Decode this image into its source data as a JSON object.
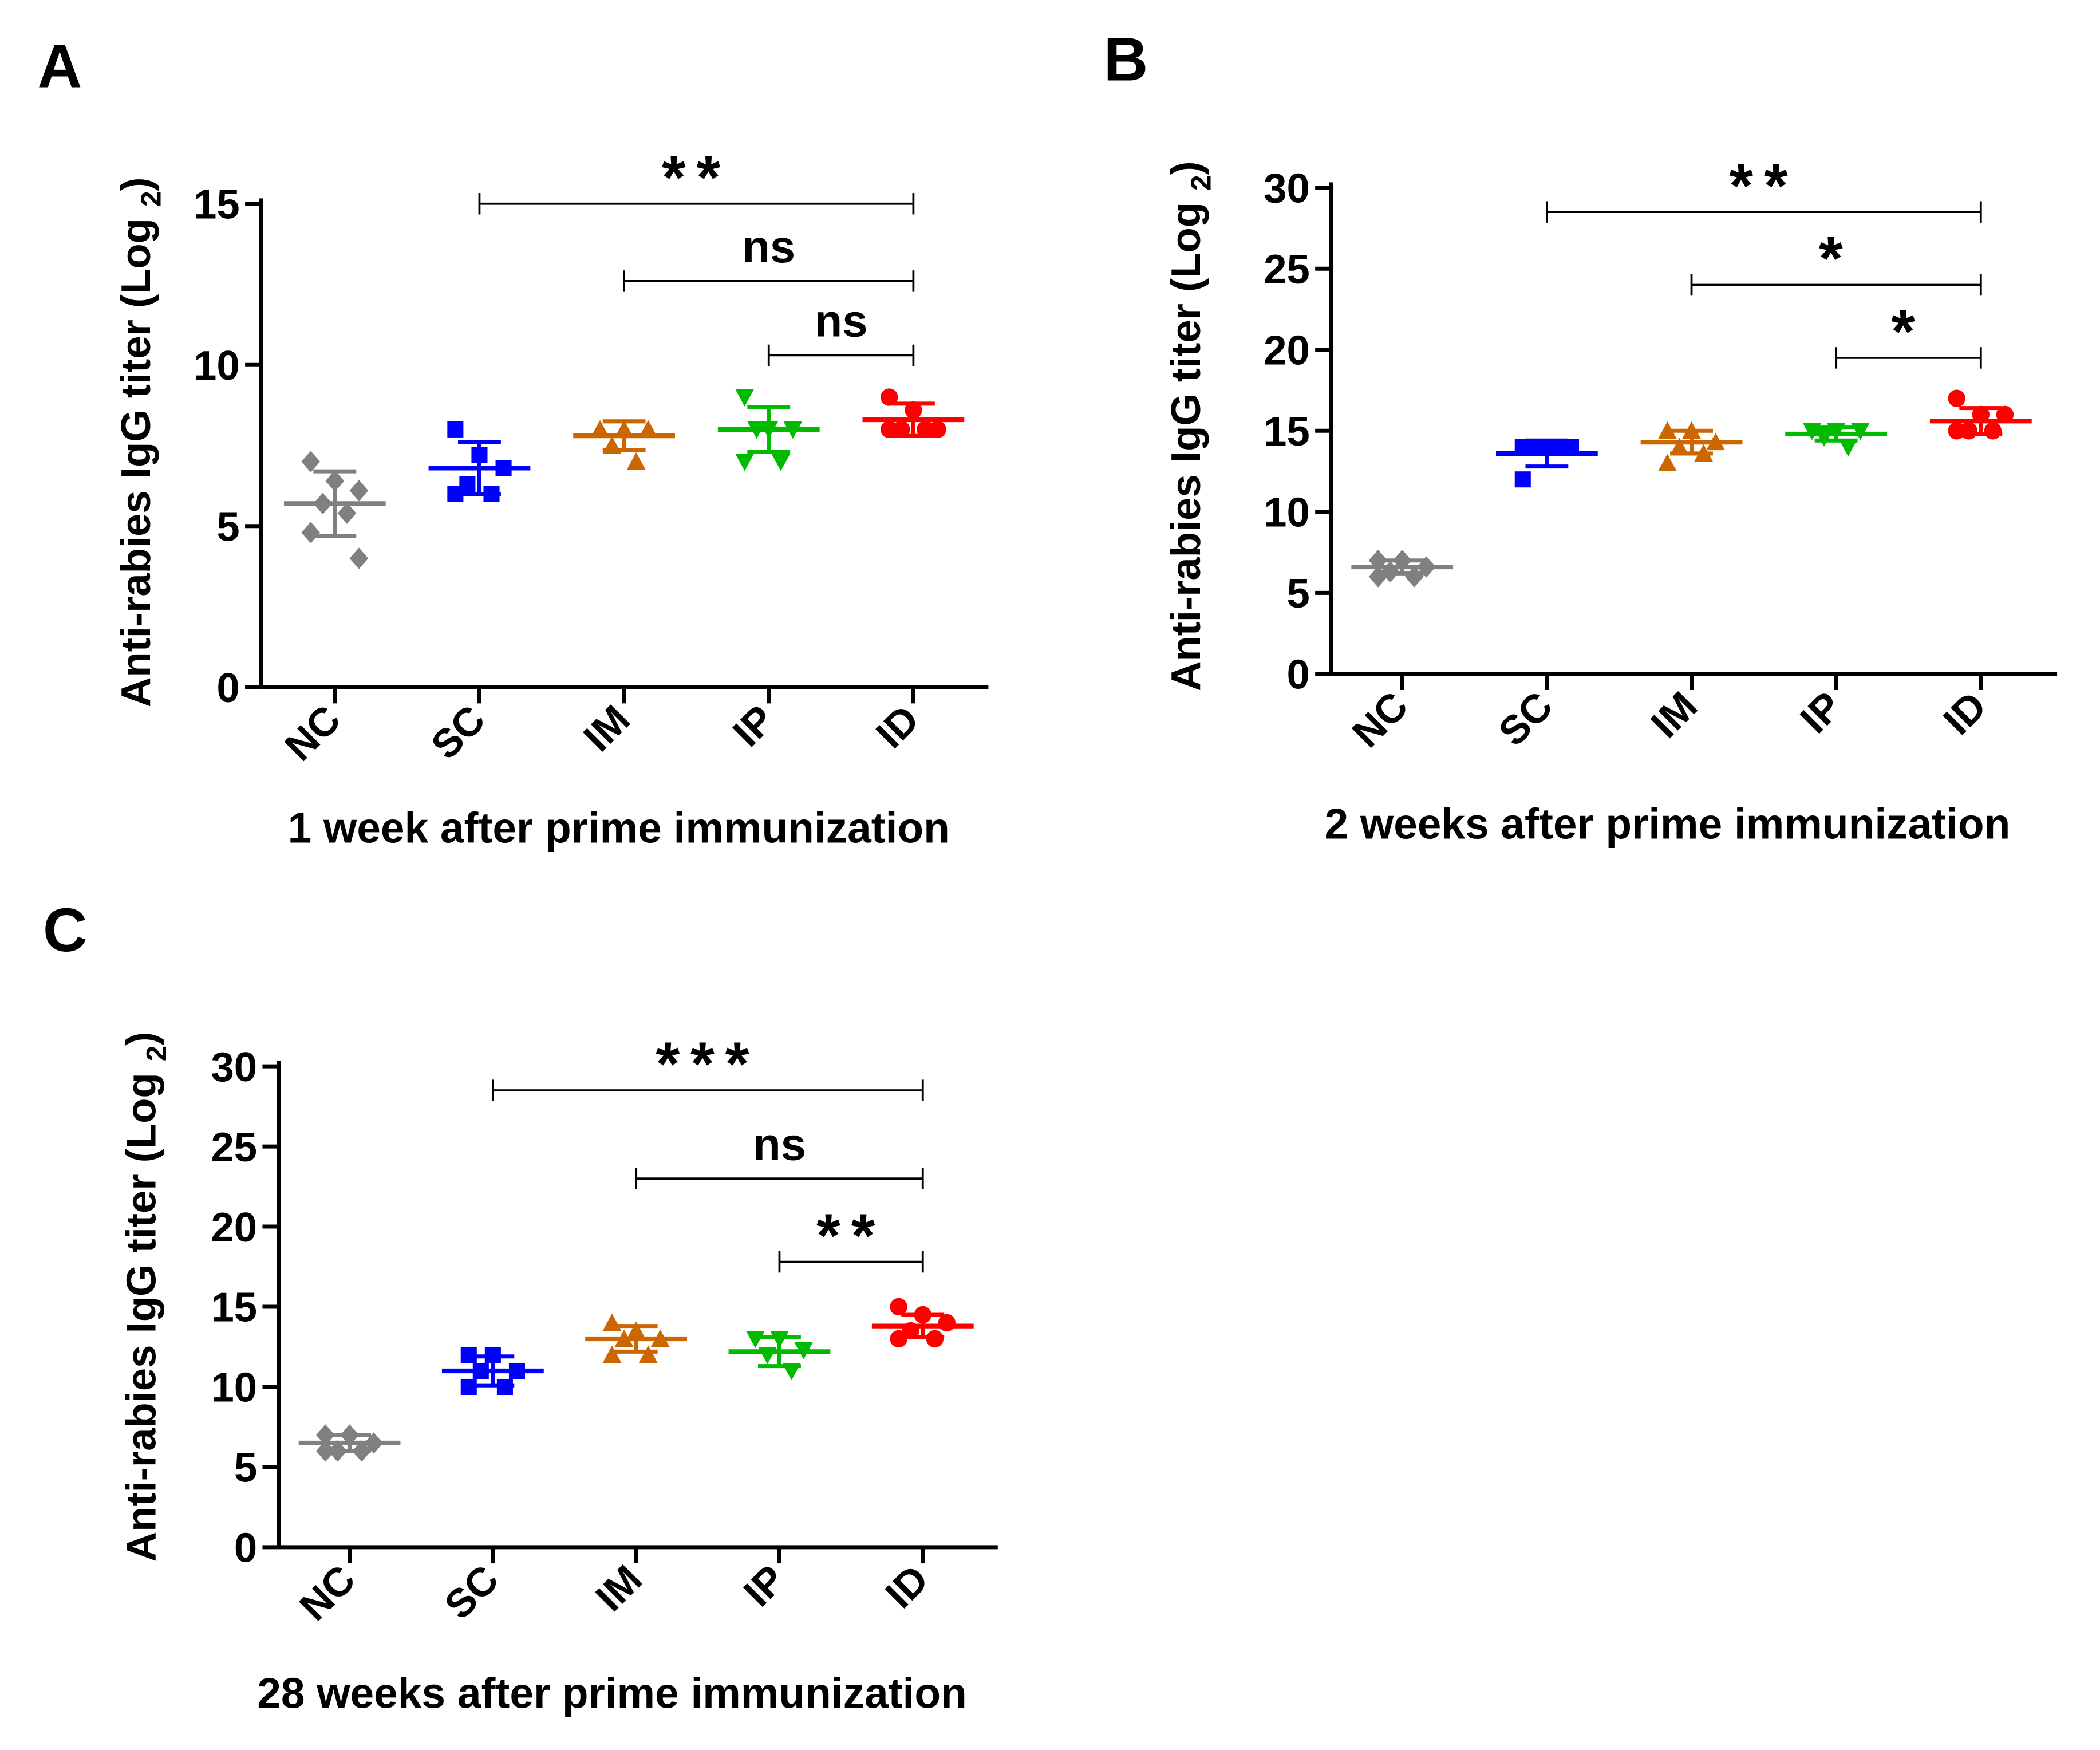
{
  "chart_data": [
    {
      "type": "scatter",
      "panel_label": "A",
      "title": "",
      "xlabel": "1 week after prime immunization",
      "ylabel": "Anti-rabies IgG titer (Log",
      "ylabel_sub": "2",
      "ylabel_close": ")",
      "ylim": [
        0,
        15
      ],
      "yticks": [
        "0",
        "5",
        "10",
        "15"
      ],
      "categories": [
        "NC",
        "SC",
        "IM",
        "IP",
        "ID"
      ],
      "series": [
        {
          "name": "NC",
          "color": "#808080",
          "marker": "diamond",
          "points": [
            7.0,
            6.4,
            6.1,
            5.7,
            5.4,
            4.8,
            4.0
          ],
          "mean": 5.7,
          "sd": 1.0
        },
        {
          "name": "SC",
          "color": "#0000ff",
          "marker": "square",
          "points": [
            8.0,
            7.2,
            6.8,
            6.3,
            6.0,
            6.0
          ],
          "mean": 6.8,
          "sd": 0.8
        },
        {
          "name": "IM",
          "color": "#cc6600",
          "marker": "triangle-up",
          "points": [
            8.0,
            8.0,
            8.0,
            7.5,
            7.0
          ],
          "mean": 7.8,
          "sd": 0.45
        },
        {
          "name": "IP",
          "color": "#00bb00",
          "marker": "triangle-down",
          "points": [
            9.0,
            8.0,
            8.0,
            8.0,
            7.0,
            7.0
          ],
          "mean": 8.0,
          "sd": 0.7
        },
        {
          "name": "ID",
          "color": "#ff0000",
          "marker": "circle",
          "points": [
            9.0,
            8.6,
            8.0,
            8.0,
            8.0,
            8.0
          ],
          "mean": 8.3,
          "sd": 0.5
        }
      ],
      "comparisons": [
        {
          "from": "SC",
          "to": "ID",
          "y": 15.0,
          "label": "**"
        },
        {
          "from": "IM",
          "to": "ID",
          "y": 12.6,
          "label": "ns"
        },
        {
          "from": "IP",
          "to": "ID",
          "y": 10.3,
          "label": "ns"
        }
      ]
    },
    {
      "type": "scatter",
      "panel_label": "B",
      "title": "",
      "xlabel": "2 weeks after prime immunization",
      "ylabel": "Anti-rabies IgG titer (Log",
      "ylabel_sub": "2",
      "ylabel_close": ")",
      "ylim": [
        0,
        30
      ],
      "yticks": [
        "0",
        "5",
        "10",
        "15",
        "20",
        "25",
        "30"
      ],
      "categories": [
        "NC",
        "SC",
        "IM",
        "IP",
        "ID"
      ],
      "series": [
        {
          "name": "NC",
          "color": "#808080",
          "marker": "diamond",
          "points": [
            7.0,
            7.0,
            6.6,
            6.3,
            6.0,
            6.0
          ],
          "mean": 6.6,
          "sd": 0.4
        },
        {
          "name": "SC",
          "color": "#0000ff",
          "marker": "square",
          "points": [
            14.0,
            14.0,
            14.0,
            14.0,
            14.0,
            12.0
          ],
          "mean": 13.6,
          "sd": 0.8
        },
        {
          "name": "IM",
          "color": "#cc6600",
          "marker": "triangle-up",
          "points": [
            15.0,
            15.0,
            14.3,
            14.0,
            13.6,
            13.0
          ],
          "mean": 14.3,
          "sd": 0.7
        },
        {
          "name": "IP",
          "color": "#00bb00",
          "marker": "triangle-down",
          "points": [
            15.0,
            15.0,
            15.0,
            14.6,
            14.0
          ],
          "mean": 14.8,
          "sd": 0.4
        },
        {
          "name": "ID",
          "color": "#ff0000",
          "marker": "circle",
          "points": [
            17.0,
            16.0,
            16.0,
            15.0,
            15.0,
            15.0
          ],
          "mean": 15.6,
          "sd": 0.8
        }
      ],
      "comparisons": [
        {
          "from": "SC",
          "to": "ID",
          "y": 28.5,
          "label": "**"
        },
        {
          "from": "IM",
          "to": "ID",
          "y": 24.0,
          "label": "*"
        },
        {
          "from": "IP",
          "to": "ID",
          "y": 19.5,
          "label": "*"
        }
      ]
    },
    {
      "type": "scatter",
      "panel_label": "C",
      "title": "",
      "xlabel": "28 weeks after prime immunization",
      "ylabel": "Anti-rabies IgG titer (Log",
      "ylabel_sub": "2",
      "ylabel_close": ")",
      "ylim": [
        0,
        30
      ],
      "yticks": [
        "0",
        "5",
        "10",
        "15",
        "20",
        "25",
        "30"
      ],
      "categories": [
        "NC",
        "SC",
        "IM",
        "IP",
        "ID"
      ],
      "series": [
        {
          "name": "NC",
          "color": "#808080",
          "marker": "diamond",
          "points": [
            7.0,
            7.0,
            6.5,
            6.0,
            6.0,
            6.0
          ],
          "mean": 6.5,
          "sd": 0.5
        },
        {
          "name": "SC",
          "color": "#0000ff",
          "marker": "square",
          "points": [
            12.0,
            12.0,
            11.0,
            11.0,
            10.0,
            10.0
          ],
          "mean": 11.0,
          "sd": 0.9
        },
        {
          "name": "IM",
          "color": "#cc6600",
          "marker": "triangle-up",
          "points": [
            14.0,
            13.5,
            13.0,
            13.0,
            12.0,
            12.0
          ],
          "mean": 13.0,
          "sd": 0.8
        },
        {
          "name": "IP",
          "color": "#00bb00",
          "marker": "triangle-down",
          "points": [
            13.0,
            13.0,
            12.3,
            12.0,
            11.0
          ],
          "mean": 12.2,
          "sd": 0.9
        },
        {
          "name": "ID",
          "color": "#ff0000",
          "marker": "circle",
          "points": [
            15.0,
            14.5,
            14.0,
            13.5,
            13.0,
            13.0
          ],
          "mean": 13.8,
          "sd": 0.7
        }
      ],
      "comparisons": [
        {
          "from": "SC",
          "to": "ID",
          "y": 28.5,
          "label": "***"
        },
        {
          "from": "IM",
          "to": "ID",
          "y": 23.0,
          "label": "ns"
        },
        {
          "from": "IP",
          "to": "ID",
          "y": 17.8,
          "label": "**"
        }
      ]
    }
  ]
}
